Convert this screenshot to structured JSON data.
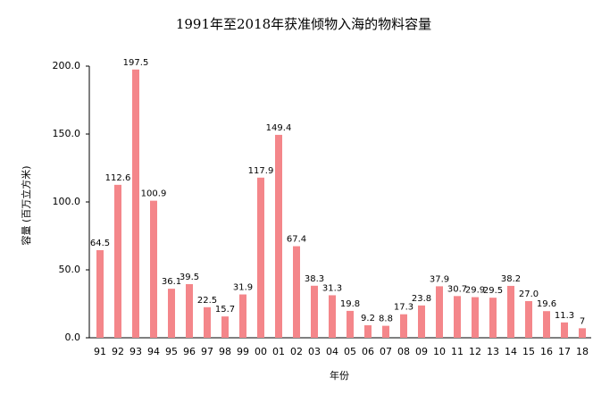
{
  "chart_data": {
    "type": "bar",
    "title": "1991年至2018年获准倾物入海的物料容量",
    "x_label": "年份",
    "y_label": "容量 (百万立方米)",
    "categories": [
      "91",
      "92",
      "93",
      "94",
      "95",
      "96",
      "97",
      "98",
      "99",
      "00",
      "01",
      "02",
      "03",
      "04",
      "05",
      "06",
      "07",
      "08",
      "09",
      "10",
      "11",
      "12",
      "13",
      "14",
      "15",
      "16",
      "17",
      "18"
    ],
    "values": [
      64.5,
      112.6,
      197.5,
      100.9,
      36.1,
      39.5,
      22.5,
      15.7,
      31.9,
      117.9,
      149.4,
      67.4,
      38.3,
      31.3,
      19.8,
      9.2,
      8.8,
      17.3,
      23.8,
      37.9,
      30.7,
      29.9,
      29.5,
      38.2,
      27.0,
      19.6,
      11.3,
      7
    ],
    "value_labels": [
      "64.5",
      "112.6",
      "197.5",
      "100.9",
      "36.1",
      "39.5",
      "22.5",
      "15.7",
      "31.9",
      "117.9",
      "149.4",
      "67.4",
      "38.3",
      "31.3",
      "19.8",
      "9.2",
      "8.8",
      "17.3",
      "23.8",
      "37.9",
      "30.7",
      "29.9",
      "29.5",
      "38.2",
      "27.0",
      "19.6",
      "11.3",
      "7"
    ],
    "color": "#f4868a",
    "ylim": [
      0,
      200
    ],
    "yticks": [
      {
        "value": 0,
        "label": "0.0"
      },
      {
        "value": 50,
        "label": "50.0"
      },
      {
        "value": 100,
        "label": "100.0"
      },
      {
        "value": 150,
        "label": "150.0"
      },
      {
        "value": 200,
        "label": "200.0"
      }
    ],
    "grid": false
  }
}
